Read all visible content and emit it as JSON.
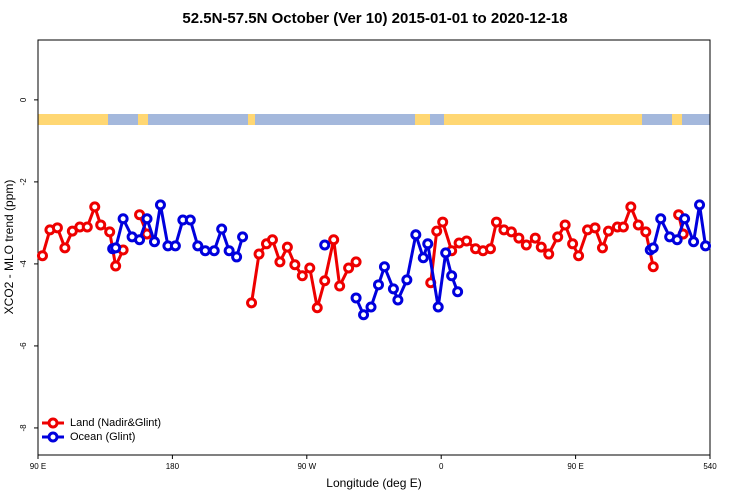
{
  "chart_data": {
    "type": "line",
    "title": "52.5N-57.5N October (Ver 10)   2015-01-01 to 2020-12-18",
    "x_label": "Longitude (deg E)",
    "y_label": "XCO2 - MLO trend (ppm)",
    "xlim": [
      90,
      540
    ],
    "ylim": [
      -8.66,
      1.46
    ],
    "xticks": [
      {
        "value": 90,
        "label": "90 E"
      },
      180,
      {
        "value": 270,
        "label": "90 W"
      },
      {
        "value": 360,
        "label": "0"
      },
      {
        "value": 450,
        "label": "90 E"
      },
      540
    ],
    "yticks": [
      0,
      -2,
      -4,
      -6,
      -8
    ],
    "legend": "bottom-left",
    "series": [
      {
        "name": "Land (Nadir&Glint)",
        "color": "#ee0000",
        "x": [
          93,
          98,
          103,
          108,
          113,
          118,
          123,
          128,
          132,
          138,
          142,
          147,
          null,
          158,
          163,
          null,
          233,
          238,
          243,
          247,
          252,
          257,
          262,
          267,
          272,
          277,
          282,
          288,
          292,
          298,
          303,
          null,
          353,
          357,
          361,
          367,
          372,
          377,
          383,
          388,
          393,
          397,
          402,
          407,
          412,
          417,
          423,
          427,
          432,
          438,
          443,
          448,
          452,
          458,
          463,
          468,
          472,
          478,
          482,
          487,
          492,
          497,
          502,
          null,
          519,
          522
        ],
        "values": [
          -3.8,
          -3.17,
          -3.12,
          -3.61,
          -3.2,
          -3.1,
          -3.1,
          -2.61,
          -3.05,
          -3.22,
          -4.05,
          -3.66,
          null,
          -2.8,
          -3.27,
          null,
          -4.95,
          -3.76,
          -3.51,
          -3.41,
          -3.95,
          -3.59,
          -4.02,
          -4.29,
          -4.1,
          -5.07,
          -4.41,
          -3.41,
          -4.54,
          -4.1,
          -3.95,
          null,
          -4.46,
          -3.2,
          -2.98,
          -3.68,
          -3.49,
          -3.44,
          -3.63,
          -3.68,
          -3.63,
          -2.98,
          -3.17,
          -3.22,
          -3.37,
          -3.54,
          -3.37,
          -3.59,
          -3.76,
          -3.34,
          -3.05,
          -3.51,
          -3.8,
          -3.17,
          -3.12,
          -3.61,
          -3.2,
          -3.1,
          -3.1,
          -2.61,
          -3.05,
          -3.22,
          -4.07,
          null,
          -2.8,
          -3.27
        ]
      },
      {
        "name": "Ocean (Glint)",
        "color": "#0000dd",
        "x": [
          140,
          142,
          147,
          153,
          158,
          163,
          168,
          172,
          177,
          182,
          187,
          192,
          197,
          202,
          208,
          213,
          218,
          223,
          227,
          null,
          282,
          null,
          303,
          308,
          313,
          318,
          322,
          328,
          331,
          337,
          343,
          348,
          351,
          358,
          363,
          367,
          371,
          null,
          500,
          502,
          507,
          513,
          518,
          523,
          529,
          533,
          537
        ],
        "values": [
          -3.63,
          -3.61,
          -2.9,
          -3.34,
          -3.41,
          -2.9,
          -3.46,
          -2.56,
          -3.56,
          -3.56,
          -2.93,
          -2.93,
          -3.56,
          -3.68,
          -3.68,
          -3.15,
          -3.68,
          -3.83,
          -3.34,
          null,
          -3.54,
          null,
          -4.83,
          -5.24,
          -5.05,
          -4.51,
          -4.07,
          -4.61,
          -4.88,
          -4.39,
          -3.29,
          -3.85,
          -3.51,
          -5.05,
          -3.73,
          -4.29,
          -4.68,
          null,
          -3.66,
          -3.61,
          -2.9,
          -3.34,
          -3.41,
          -2.9,
          -3.46,
          -2.56,
          -3.56
        ]
      }
    ]
  }
}
